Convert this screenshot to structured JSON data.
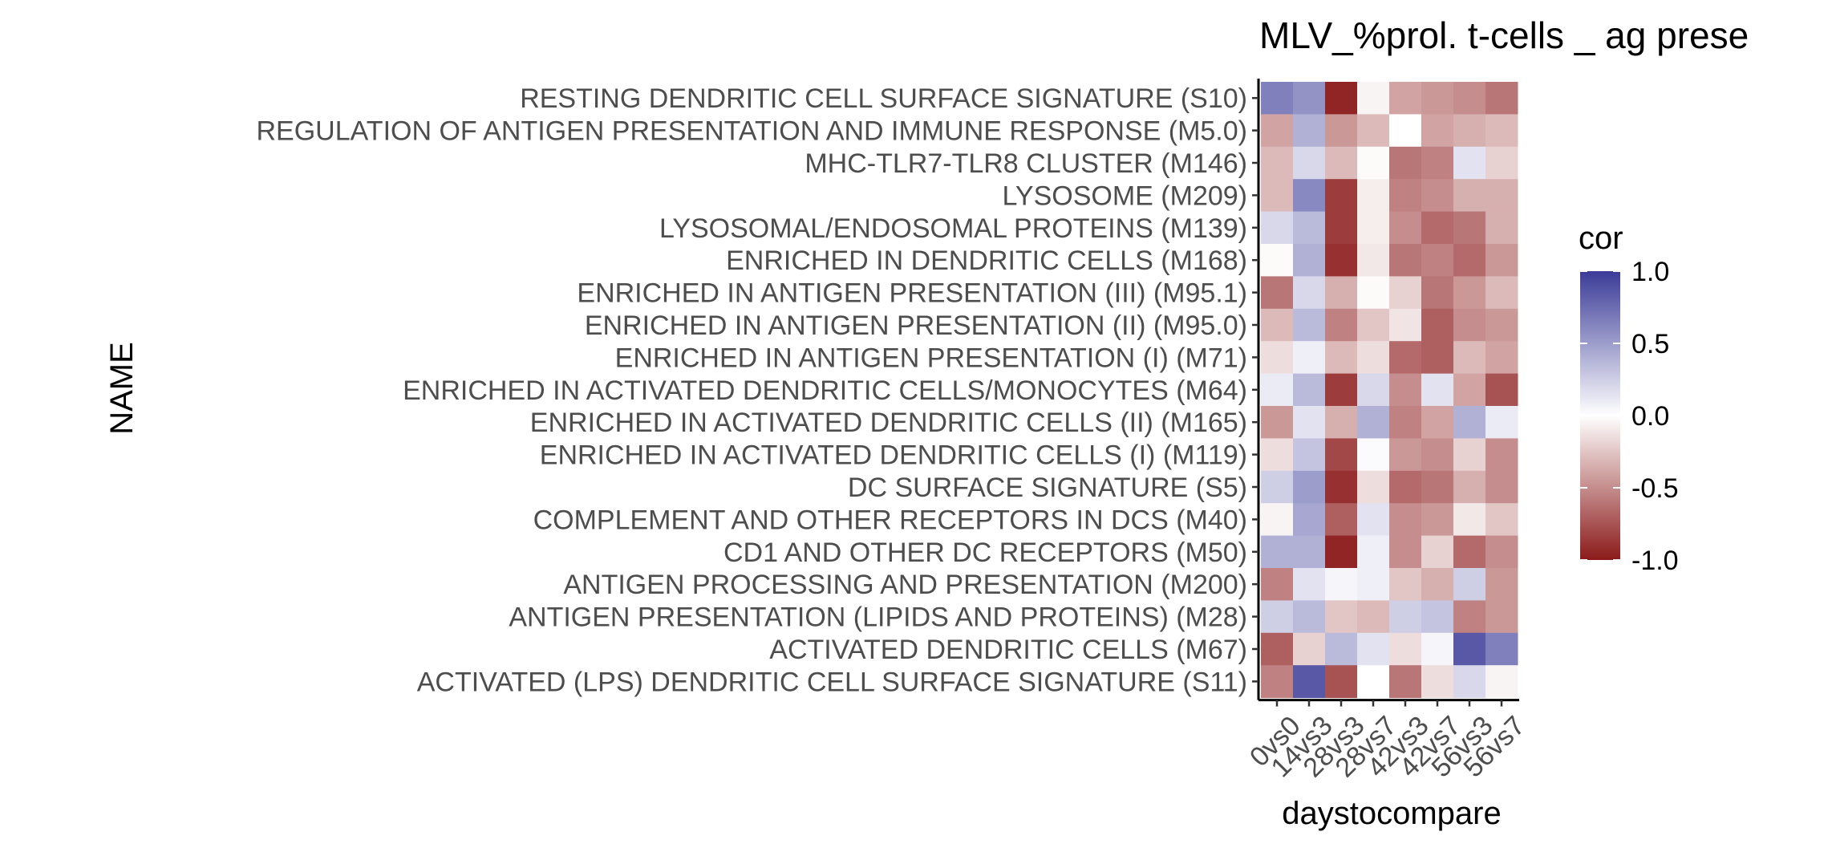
{
  "chart_data": {
    "type": "heatmap",
    "title": "MLV_%prol. t-cells _ ag prese",
    "xlabel": "daystocompare",
    "ylabel": "NAME",
    "x": [
      "0vs0",
      "14vs3",
      "28vs3",
      "28vs7",
      "42vs3",
      "42vs7",
      "56vs3",
      "56vs7"
    ],
    "y": [
      "RESTING DENDRITIC CELL SURFACE SIGNATURE (S10)",
      "REGULATION OF ANTIGEN PRESENTATION AND IMMUNE RESPONSE (M5.0)",
      "MHC-TLR7-TLR8 CLUSTER (M146)",
      "LYSOSOME (M209)",
      "LYSOSOMAL/ENDOSOMAL PROTEINS (M139)",
      "ENRICHED IN DENDRITIC CELLS (M168)",
      "ENRICHED IN ANTIGEN PRESENTATION (III) (M95.1)",
      "ENRICHED IN ANTIGEN PRESENTATION (II) (M95.0)",
      "ENRICHED IN ANTIGEN PRESENTATION (I) (M71)",
      "ENRICHED IN ACTIVATED DENDRITIC CELLS/MONOCYTES (M64)",
      "ENRICHED IN ACTIVATED DENDRITIC CELLS (II) (M165)",
      "ENRICHED IN ACTIVATED DENDRITIC CELLS (I) (M119)",
      "DC SURFACE SIGNATURE (S5)",
      "COMPLEMENT AND OTHER RECEPTORS IN DCS (M40)",
      "CD1 AND OTHER DC RECEPTORS (M50)",
      "ANTIGEN PROCESSING AND PRESENTATION (M200)",
      "ANTIGEN PRESENTATION (LIPIDS AND PROTEINS) (M28)",
      "ACTIVATED DENDRITIC CELLS (M67)",
      "ACTIVATED (LPS) DENDRITIC CELL SURFACE SIGNATURE (S11)"
    ],
    "values": [
      [
        0.65,
        0.55,
        -0.95,
        -0.05,
        -0.4,
        -0.45,
        -0.5,
        -0.6
      ],
      [
        -0.4,
        0.4,
        -0.45,
        -0.3,
        0.0,
        -0.4,
        -0.35,
        -0.3
      ],
      [
        -0.3,
        0.2,
        -0.3,
        -0.02,
        -0.6,
        -0.55,
        0.15,
        -0.2
      ],
      [
        -0.3,
        0.6,
        -0.85,
        -0.08,
        -0.55,
        -0.5,
        -0.35,
        -0.35
      ],
      [
        0.2,
        0.35,
        -0.85,
        -0.08,
        -0.5,
        -0.65,
        -0.6,
        -0.35
      ],
      [
        -0.02,
        0.4,
        -0.9,
        -0.1,
        -0.6,
        -0.55,
        -0.65,
        -0.45
      ],
      [
        -0.6,
        0.2,
        -0.35,
        -0.02,
        -0.2,
        -0.6,
        -0.45,
        -0.3
      ],
      [
        -0.3,
        0.35,
        -0.55,
        -0.25,
        -0.12,
        -0.7,
        -0.5,
        -0.45
      ],
      [
        -0.15,
        0.08,
        -0.3,
        -0.15,
        -0.65,
        -0.7,
        -0.3,
        -0.4
      ],
      [
        0.1,
        0.35,
        -0.85,
        0.2,
        -0.5,
        0.15,
        -0.4,
        -0.75
      ],
      [
        -0.45,
        0.15,
        -0.35,
        0.4,
        -0.55,
        -0.4,
        0.4,
        0.1
      ],
      [
        -0.15,
        0.3,
        -0.8,
        0.02,
        -0.45,
        -0.5,
        -0.2,
        -0.5
      ],
      [
        0.25,
        0.5,
        -0.9,
        -0.15,
        -0.65,
        -0.6,
        -0.35,
        -0.5
      ],
      [
        -0.05,
        0.45,
        -0.7,
        0.15,
        -0.5,
        -0.45,
        -0.1,
        -0.25
      ],
      [
        0.4,
        0.4,
        -0.95,
        0.08,
        -0.5,
        -0.2,
        -0.65,
        -0.5
      ],
      [
        -0.55,
        0.15,
        0.05,
        0.08,
        -0.25,
        -0.35,
        0.25,
        -0.45
      ],
      [
        0.25,
        0.35,
        -0.25,
        -0.3,
        0.25,
        0.3,
        -0.55,
        -0.45
      ],
      [
        -0.7,
        -0.2,
        0.35,
        0.15,
        -0.15,
        0.05,
        0.85,
        0.65
      ],
      [
        -0.55,
        0.85,
        -0.75,
        0.0,
        -0.6,
        -0.15,
        0.2,
        -0.05
      ]
    ],
    "legend": {
      "title": "cor",
      "ticks": [
        1.0,
        0.5,
        0.0,
        -0.5,
        -1.0
      ],
      "tick_labels": [
        "1.0",
        "0.5",
        "0.0",
        "-0.5",
        "-1.0"
      ],
      "range": [
        -1.0,
        1.0
      ],
      "colors": {
        "high": "#3b3b98",
        "mid": "#ffffff",
        "low": "#8b1a1a"
      },
      "placement": "right"
    },
    "grid": false
  }
}
